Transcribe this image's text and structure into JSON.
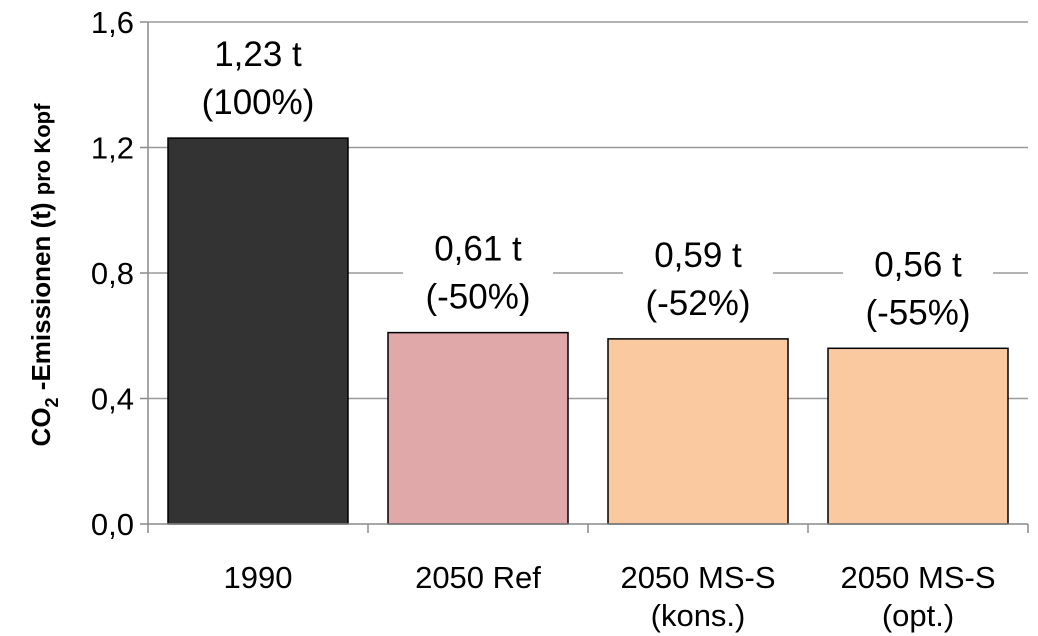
{
  "chart_data": {
    "type": "bar",
    "categories": [
      [
        "1990"
      ],
      [
        "2050 Ref"
      ],
      [
        "2050 MS-S",
        "(kons.)"
      ],
      [
        "2050 MS-S",
        "(opt.)"
      ]
    ],
    "values": [
      1.23,
      0.61,
      0.59,
      0.56
    ],
    "data_labels": [
      [
        "1,23 t",
        "(100%)"
      ],
      [
        "0,61 t",
        "(-50%)"
      ],
      [
        "0,59 t",
        "(-52%)"
      ],
      [
        "0,56 t",
        "(-55%)"
      ]
    ],
    "bar_colors": [
      "#333333",
      "#e0a8a8",
      "#fbc9a0",
      "#fbc9a0"
    ],
    "ylabel_main": "CO",
    "ylabel_sub": "2",
    "ylabel_rest": " -Emissionen (t) ",
    "ylabel_tail": "pro Kopf",
    "ylim": [
      0,
      1.6
    ],
    "yticks": [
      0,
      0.4,
      0.8,
      1.2,
      1.6
    ],
    "ytick_labels": [
      "0,0",
      "0,4",
      "0,8",
      "1,2",
      "1,6"
    ],
    "grid": true,
    "title": "",
    "xlabel": ""
  }
}
